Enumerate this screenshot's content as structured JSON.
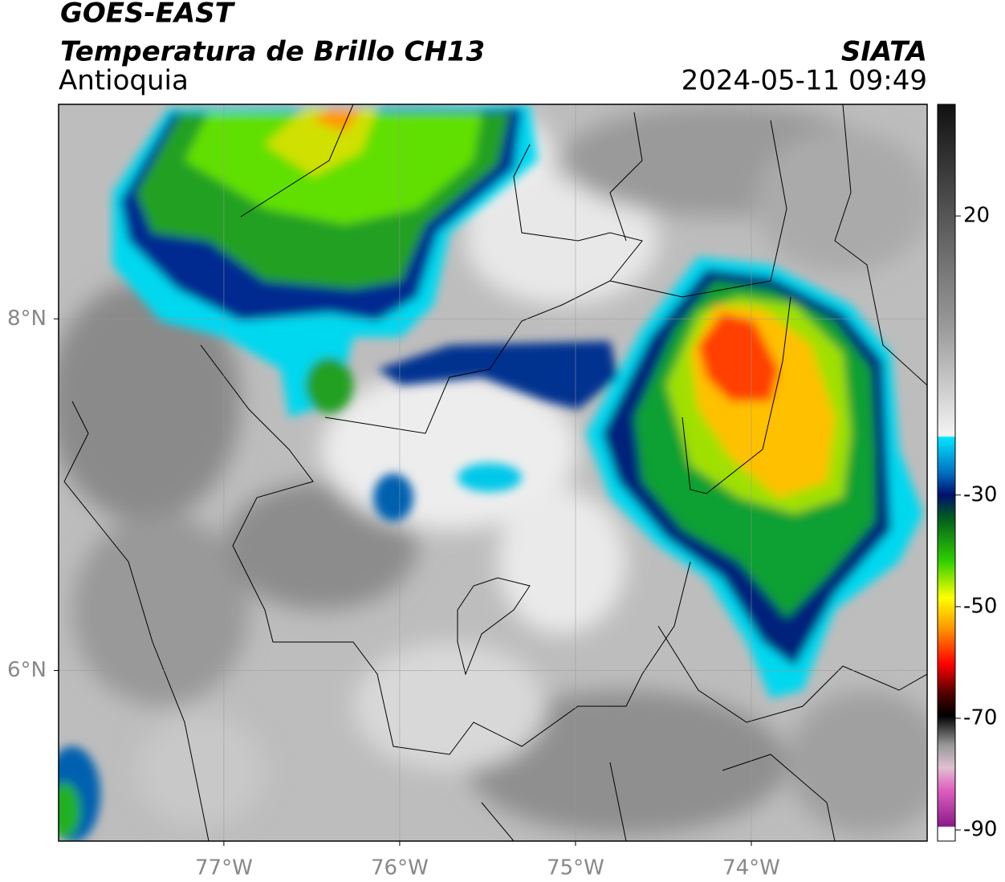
{
  "header": {
    "title": "GOES-EAST",
    "subtitle": "Temperatura de Brillo CH13",
    "region": "Antioquia",
    "source": "SIATA",
    "datetime": "2024-05-11 09:49"
  },
  "map": {
    "xlim": [
      -77.94,
      -73.0
    ],
    "ylim": [
      5.03,
      9.22
    ],
    "xticks": [
      {
        "value": -77,
        "label": "77°W"
      },
      {
        "value": -76,
        "label": "76°W"
      },
      {
        "value": -75,
        "label": "75°W"
      },
      {
        "value": -74,
        "label": "74°W"
      }
    ],
    "yticks": [
      {
        "value": 8,
        "label": "8°N"
      },
      {
        "value": 6,
        "label": "6°N"
      }
    ]
  },
  "colorbar": {
    "range": [
      -92,
      40
    ],
    "ticks": [
      20,
      -30,
      -50,
      -70,
      -90
    ]
  }
}
